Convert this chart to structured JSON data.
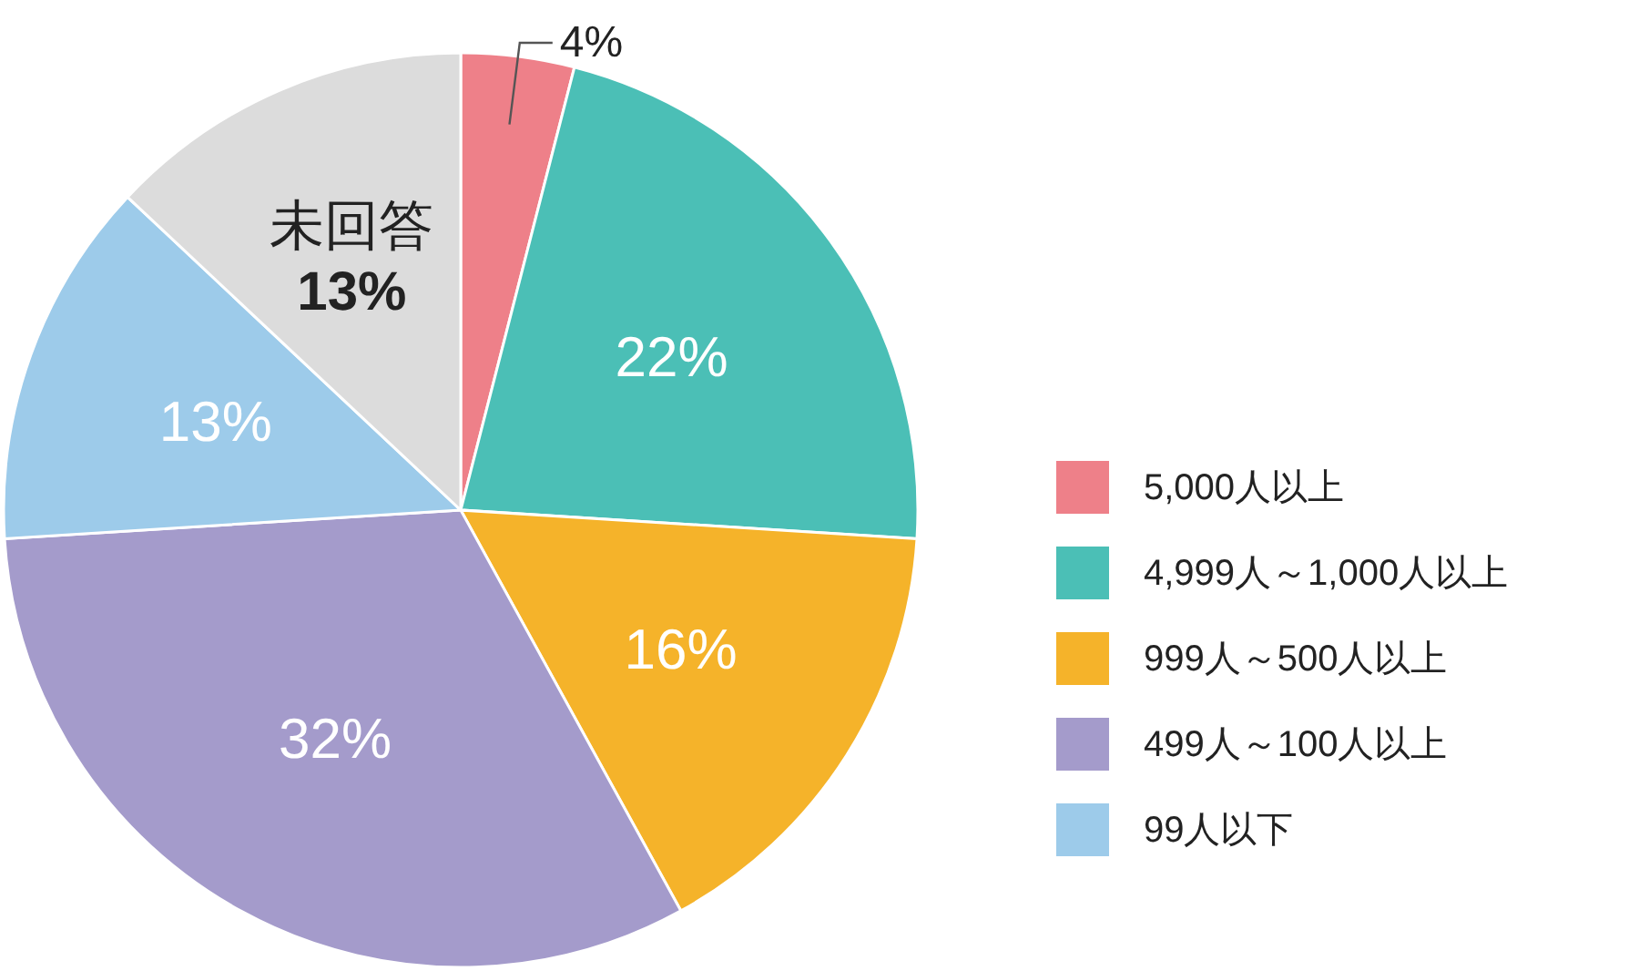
{
  "chart_data": {
    "type": "pie",
    "categories": [
      "5,000人以上",
      "4,999人～1,000人以上",
      "999人～500人以上",
      "499人～100人以上",
      "99人以下",
      "未回答"
    ],
    "values": [
      4,
      22,
      16,
      32,
      13,
      13
    ],
    "colors": [
      "#ee8089",
      "#4bbfb6",
      "#f5b32a",
      "#a49bcb",
      "#9dcbea",
      "#dcdcdc"
    ],
    "value_labels": [
      "4%",
      "22%",
      "16%",
      "32%",
      "13%",
      "13%"
    ],
    "legend": "right"
  }
}
